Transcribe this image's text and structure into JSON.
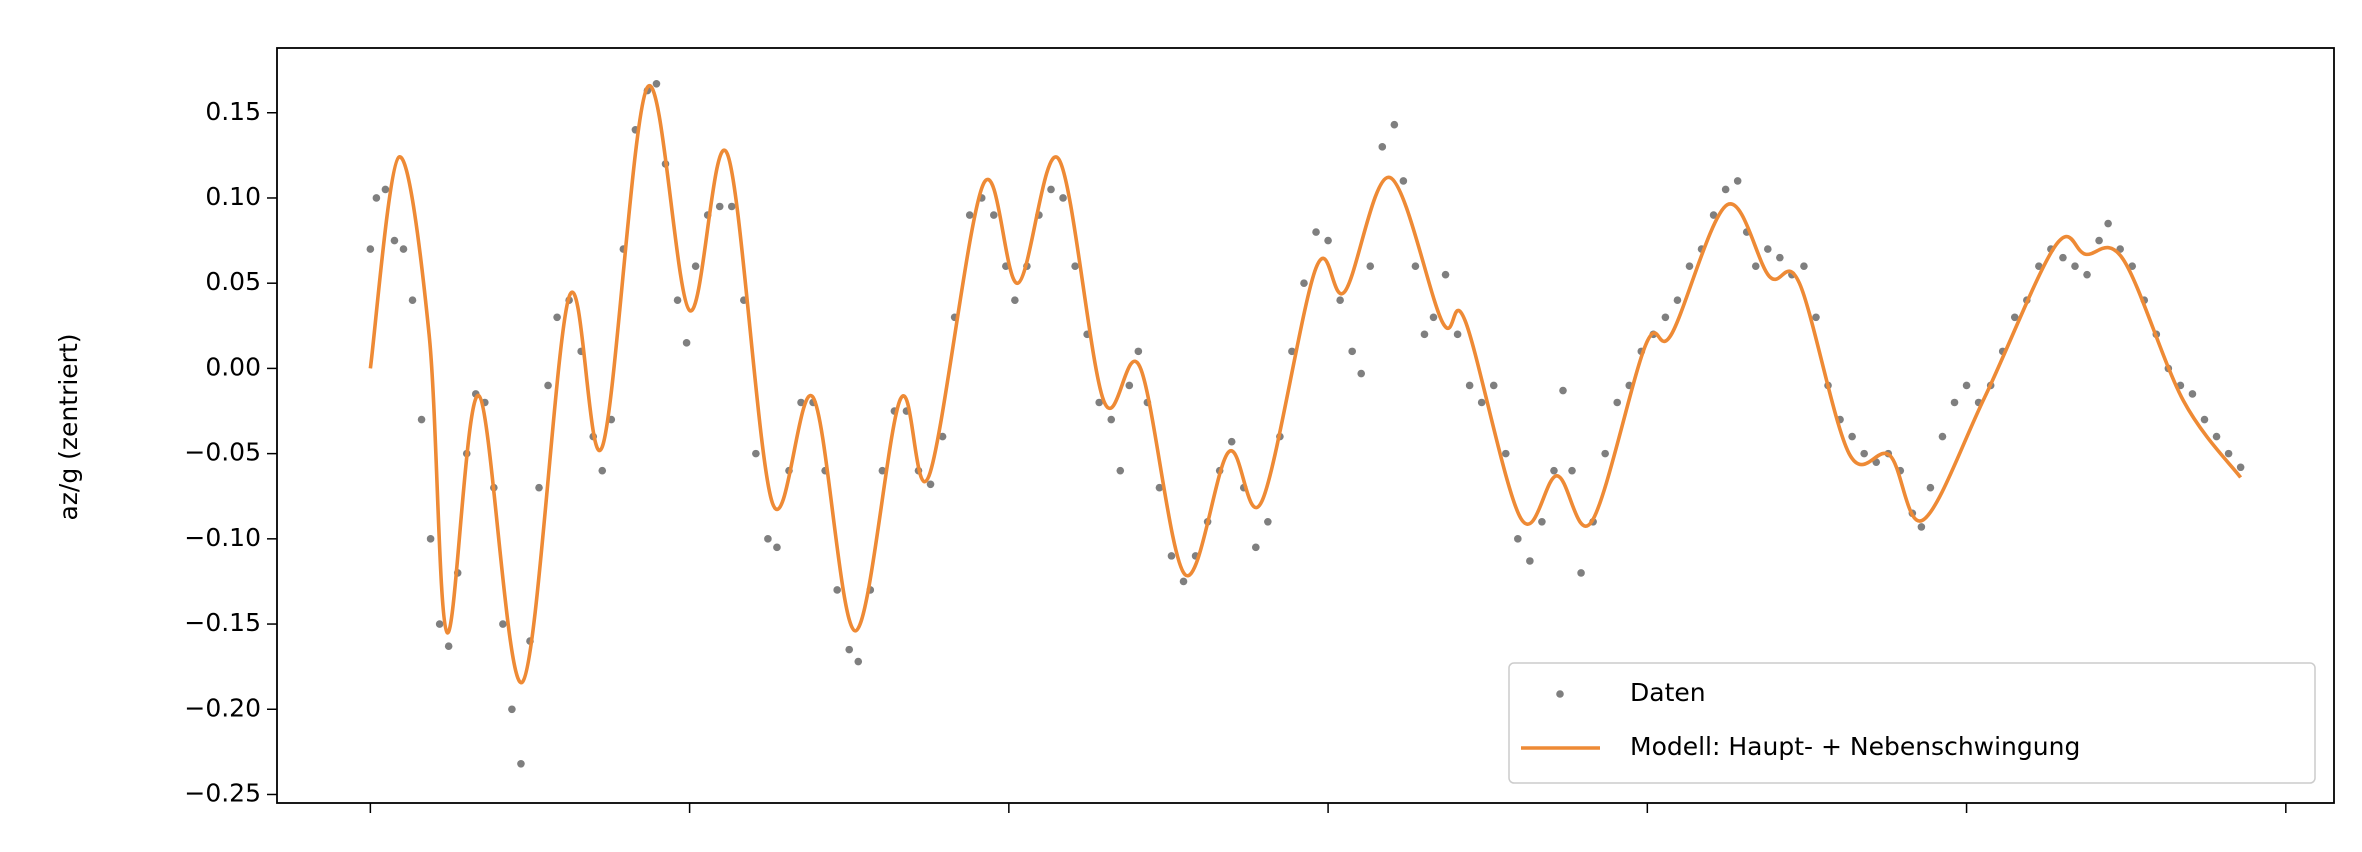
{
  "chart_data": {
    "type": "line",
    "y_label": "az/g (zentriert)",
    "xlim": [
      -62,
      1304
    ],
    "xticks": [
      0,
      212,
      424,
      636,
      848,
      1060,
      1272
    ],
    "ylim": [
      -0.255,
      0.188
    ],
    "yticks": [
      {
        "value": -0.25,
        "label": "−0.25"
      },
      {
        "value": -0.2,
        "label": "−0.20"
      },
      {
        "value": -0.15,
        "label": "−0.15"
      },
      {
        "value": -0.1,
        "label": "−0.10"
      },
      {
        "value": -0.05,
        "label": "−0.05"
      },
      {
        "value": 0,
        "label": "0.00"
      },
      {
        "value": 0.05,
        "label": "0.05"
      },
      {
        "value": 0.1,
        "label": "0.10"
      },
      {
        "value": 0.15,
        "label": "0.15"
      }
    ],
    "legend": "lower right",
    "series": [
      {
        "name": "Daten",
        "mode": "markers",
        "color": "#7f7f7f",
        "x": [
          0,
          4,
          10,
          16,
          22,
          28,
          34,
          40,
          46,
          52,
          58,
          64,
          70,
          76,
          82,
          88,
          94,
          100,
          106,
          112,
          118,
          124,
          132,
          140,
          148,
          154,
          160,
          168,
          176,
          184,
          190,
          196,
          204,
          210,
          216,
          224,
          232,
          240,
          248,
          256,
          264,
          270,
          278,
          286,
          294,
          302,
          310,
          318,
          324,
          332,
          340,
          348,
          356,
          364,
          372,
          380,
          388,
          398,
          406,
          414,
          422,
          428,
          436,
          444,
          452,
          460,
          468,
          476,
          484,
          492,
          498,
          504,
          510,
          516,
          524,
          532,
          540,
          548,
          556,
          564,
          572,
          580,
          588,
          596,
          604,
          612,
          620,
          628,
          636,
          644,
          652,
          658,
          664,
          672,
          680,
          686,
          694,
          700,
          706,
          714,
          722,
          730,
          738,
          746,
          754,
          762,
          770,
          778,
          786,
          792,
          798,
          804,
          812,
          820,
          828,
          836,
          844,
          852,
          860,
          868,
          876,
          884,
          892,
          900,
          908,
          914,
          920,
          928,
          936,
          944,
          952,
          960,
          968,
          976,
          984,
          992,
          1000,
          1008,
          1016,
          1024,
          1030,
          1036,
          1044,
          1052,
          1060,
          1068,
          1076,
          1084,
          1092,
          1100,
          1108,
          1116,
          1124,
          1132,
          1140,
          1148,
          1154,
          1162,
          1170,
          1178,
          1186,
          1194,
          1202,
          1210,
          1218,
          1226,
          1234,
          1242
        ],
        "values": [
          0.07,
          0.1,
          0.105,
          0.075,
          0.07,
          0.04,
          -0.03,
          -0.1,
          -0.15,
          -0.163,
          -0.12,
          -0.05,
          -0.015,
          -0.02,
          -0.07,
          -0.15,
          -0.2,
          -0.232,
          -0.16,
          -0.07,
          -0.01,
          0.03,
          0.04,
          0.01,
          -0.04,
          -0.06,
          -0.03,
          0.07,
          0.14,
          0.163,
          0.167,
          0.12,
          0.04,
          0.015,
          0.06,
          0.09,
          0.095,
          0.095,
          0.04,
          -0.05,
          -0.1,
          -0.105,
          -0.06,
          -0.02,
          -0.02,
          -0.06,
          -0.13,
          -0.165,
          -0.172,
          -0.13,
          -0.06,
          -0.025,
          -0.025,
          -0.06,
          -0.068,
          -0.04,
          0.03,
          0.09,
          0.1,
          0.09,
          0.06,
          0.04,
          0.06,
          0.09,
          0.105,
          0.1,
          0.06,
          0.02,
          -0.02,
          -0.03,
          -0.06,
          -0.01,
          0.01,
          -0.02,
          -0.07,
          -0.11,
          -0.125,
          -0.11,
          -0.09,
          -0.06,
          -0.043,
          -0.07,
          -0.105,
          -0.09,
          -0.04,
          0.01,
          0.05,
          0.08,
          0.075,
          0.04,
          0.01,
          -0.003,
          0.06,
          0.13,
          0.143,
          0.11,
          0.06,
          0.02,
          0.03,
          0.055,
          0.02,
          -0.01,
          -0.02,
          -0.01,
          -0.05,
          -0.1,
          -0.113,
          -0.09,
          -0.06,
          -0.013,
          -0.06,
          -0.12,
          -0.09,
          -0.05,
          -0.02,
          -0.01,
          0.01,
          0.02,
          0.03,
          0.04,
          0.06,
          0.07,
          0.09,
          0.105,
          0.11,
          0.08,
          0.06,
          0.07,
          0.065,
          0.055,
          0.06,
          0.03,
          -0.01,
          -0.03,
          -0.04,
          -0.05,
          -0.055,
          -0.05,
          -0.06,
          -0.085,
          -0.093,
          -0.07,
          -0.04,
          -0.02,
          -0.01,
          -0.02,
          -0.01,
          0.01,
          0.03,
          0.04,
          0.06,
          0.07,
          0.065,
          0.06,
          0.055,
          0.075,
          0.085,
          0.07,
          0.06,
          0.04,
          0.02,
          0.0,
          -0.01,
          -0.015,
          -0.03,
          -0.04,
          -0.05,
          -0.058
        ]
      },
      {
        "name": "Modell: Haupt- + Nebenschwingung",
        "mode": "line",
        "color": "#ee8a35",
        "x": [
          0,
          19,
          39,
          51,
          72,
          101,
          132,
          154,
          184,
          212,
          237,
          267,
          294,
          322,
          352,
          371,
          407,
          430,
          457,
          487,
          511,
          541,
          570,
          592,
          628,
          647,
          677,
          712,
          727,
          764,
          788,
          811,
          847,
          864,
          901,
          929,
          949,
          982,
          1009,
          1031,
          1072,
          1119,
          1139,
          1164,
          1204,
          1242
        ],
        "values": [
          0,
          0.124,
          0.02,
          -0.155,
          -0.016,
          -0.184,
          0.042,
          -0.046,
          0.165,
          0.034,
          0.126,
          -0.079,
          -0.017,
          -0.154,
          -0.018,
          -0.063,
          0.108,
          0.05,
          0.123,
          -0.019,
          0.001,
          -0.121,
          -0.049,
          -0.078,
          0.059,
          0.045,
          0.112,
          0.027,
          0.028,
          -0.088,
          -0.063,
          -0.09,
          0.014,
          0.02,
          0.096,
          0.054,
          0.05,
          -0.05,
          -0.051,
          -0.089,
          -0.017,
          0.072,
          0.067,
          0.064,
          -0.019,
          -0.064
        ]
      }
    ]
  }
}
